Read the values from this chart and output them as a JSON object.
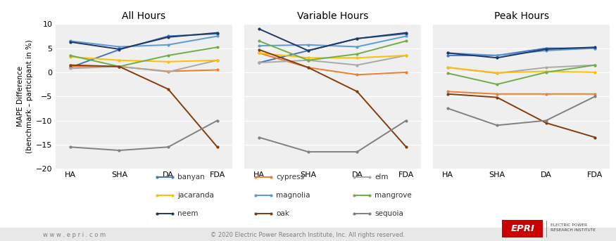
{
  "x_labels": [
    "HA",
    "SHA",
    "DA",
    "FDA"
  ],
  "titles": [
    "All Hours",
    "Variable Hours",
    "Peak Hours"
  ],
  "series": {
    "banyan": {
      "color": "#4472C4",
      "all_hours": [
        1.0,
        4.7,
        7.5,
        8.0
      ],
      "variable_hours": [
        2.0,
        4.5,
        7.0,
        8.0
      ],
      "peak_hours": [
        3.5,
        3.5,
        5.0,
        5.0
      ]
    },
    "cypress": {
      "color": "#ED7D31",
      "all_hours": [
        1.2,
        1.2,
        0.2,
        0.5
      ],
      "variable_hours": [
        4.0,
        1.0,
        -0.5,
        0.0
      ],
      "peak_hours": [
        -4.0,
        -4.5,
        -4.5,
        -4.5
      ]
    },
    "elm": {
      "color": "#A9A9A9",
      "all_hours": [
        0.8,
        1.2,
        0.1,
        2.5
      ],
      "variable_hours": [
        2.0,
        2.5,
        1.5,
        3.5
      ],
      "peak_hours": [
        1.0,
        -0.2,
        1.0,
        1.5
      ]
    },
    "jacaranda": {
      "color": "#FFC000",
      "all_hours": [
        3.2,
        2.5,
        2.2,
        2.5
      ],
      "variable_hours": [
        4.0,
        3.0,
        3.0,
        3.5
      ],
      "peak_hours": [
        1.0,
        -0.1,
        0.2,
        0.0
      ]
    },
    "magnolia": {
      "color": "#5B9BD5",
      "all_hours": [
        6.5,
        5.3,
        5.7,
        7.5
      ],
      "variable_hours": [
        5.5,
        5.7,
        5.3,
        7.5
      ],
      "peak_hours": [
        4.0,
        3.5,
        4.5,
        5.0
      ]
    },
    "mangrove": {
      "color": "#70AD47",
      "all_hours": [
        3.5,
        1.2,
        3.5,
        5.2
      ],
      "variable_hours": [
        6.5,
        2.5,
        3.8,
        6.5
      ],
      "peak_hours": [
        -0.2,
        -2.5,
        0.0,
        1.5
      ]
    },
    "neem": {
      "color": "#203864",
      "all_hours": [
        6.3,
        4.8,
        7.3,
        8.2
      ],
      "variable_hours": [
        9.0,
        4.5,
        7.0,
        8.2
      ],
      "peak_hours": [
        4.0,
        3.0,
        4.8,
        5.2
      ]
    },
    "oak": {
      "color": "#843C0C",
      "all_hours": [
        1.5,
        1.2,
        -3.5,
        -15.5
      ],
      "variable_hours": [
        4.7,
        1.0,
        -4.0,
        -15.5
      ],
      "peak_hours": [
        -4.5,
        -5.2,
        -10.5,
        -13.5
      ]
    },
    "sequoia": {
      "color": "#808080",
      "all_hours": [
        -15.5,
        -16.2,
        -15.5,
        -10.0
      ],
      "variable_hours": [
        -13.5,
        -16.5,
        -16.5,
        -10.0
      ],
      "peak_hours": [
        -7.5,
        -11.0,
        -10.0,
        -5.0
      ]
    }
  },
  "ylim": [
    -20,
    10
  ],
  "yticks": [
    -20,
    -15,
    -10,
    -5,
    0,
    5,
    10
  ],
  "ylabel": "MAPE Difference\n(benchmark – participant in %)",
  "plot_bg": "#EFEFEF",
  "fig_bg": "#FFFFFF",
  "legend_order": [
    "banyan",
    "cypress",
    "elm",
    "jacaranda",
    "magnolia",
    "mangrove",
    "neem",
    "oak",
    "sequoia"
  ],
  "footer_left": "w w w . e p r i . c o m",
  "footer_center": "© 2020 Electric Power Research Institute, Inc. All rights reserved.",
  "epri_color": "#CC0000"
}
